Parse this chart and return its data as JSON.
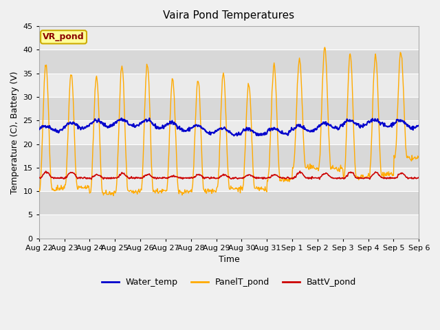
{
  "title": "Vaira Pond Temperatures",
  "xlabel": "Time",
  "ylabel": "Temperature (C), Battery (V)",
  "site_label": "VR_pond",
  "ylim": [
    0,
    45
  ],
  "yticks": [
    0,
    5,
    10,
    15,
    20,
    25,
    30,
    35,
    40,
    45
  ],
  "date_labels": [
    "Aug 22",
    "Aug 23",
    "Aug 24",
    "Aug 25",
    "Aug 26",
    "Aug 27",
    "Aug 28",
    "Aug 29",
    "Aug 30",
    "Aug 31",
    "Sep 1",
    "Sep 2",
    "Sep 3",
    "Sep 4",
    "Sep 5",
    "Sep 6"
  ],
  "water_color": "#0000cc",
  "panel_color": "#ffaa00",
  "batt_color": "#cc0000",
  "fig_bg": "#f0f0f0",
  "plot_bg": "#ffffff",
  "band_light": "#ebebeb",
  "band_dark": "#d8d8d8",
  "legend_labels": [
    "Water_temp",
    "PanelT_pond",
    "BattV_pond"
  ],
  "n_days": 15,
  "water_base": 23.5,
  "panel_day_peaks": [
    37,
    35,
    34.5,
    36.5,
    37,
    34,
    33.5,
    35,
    32.5,
    36.5,
    38,
    40.5,
    39,
    39,
    39.5
  ],
  "panel_night_mins": [
    10.5,
    10.8,
    9.5,
    9.8,
    10,
    9.8,
    10,
    10.5,
    10.5,
    12.5,
    15,
    14.8,
    13,
    13.5,
    17
  ],
  "batt_base": 12.8,
  "batt_peaks": [
    14,
    14,
    13.5,
    13.8,
    13.5,
    13.2,
    13.5,
    13.5,
    13.5,
    13.5,
    14,
    13.8,
    14,
    14,
    13.8
  ]
}
